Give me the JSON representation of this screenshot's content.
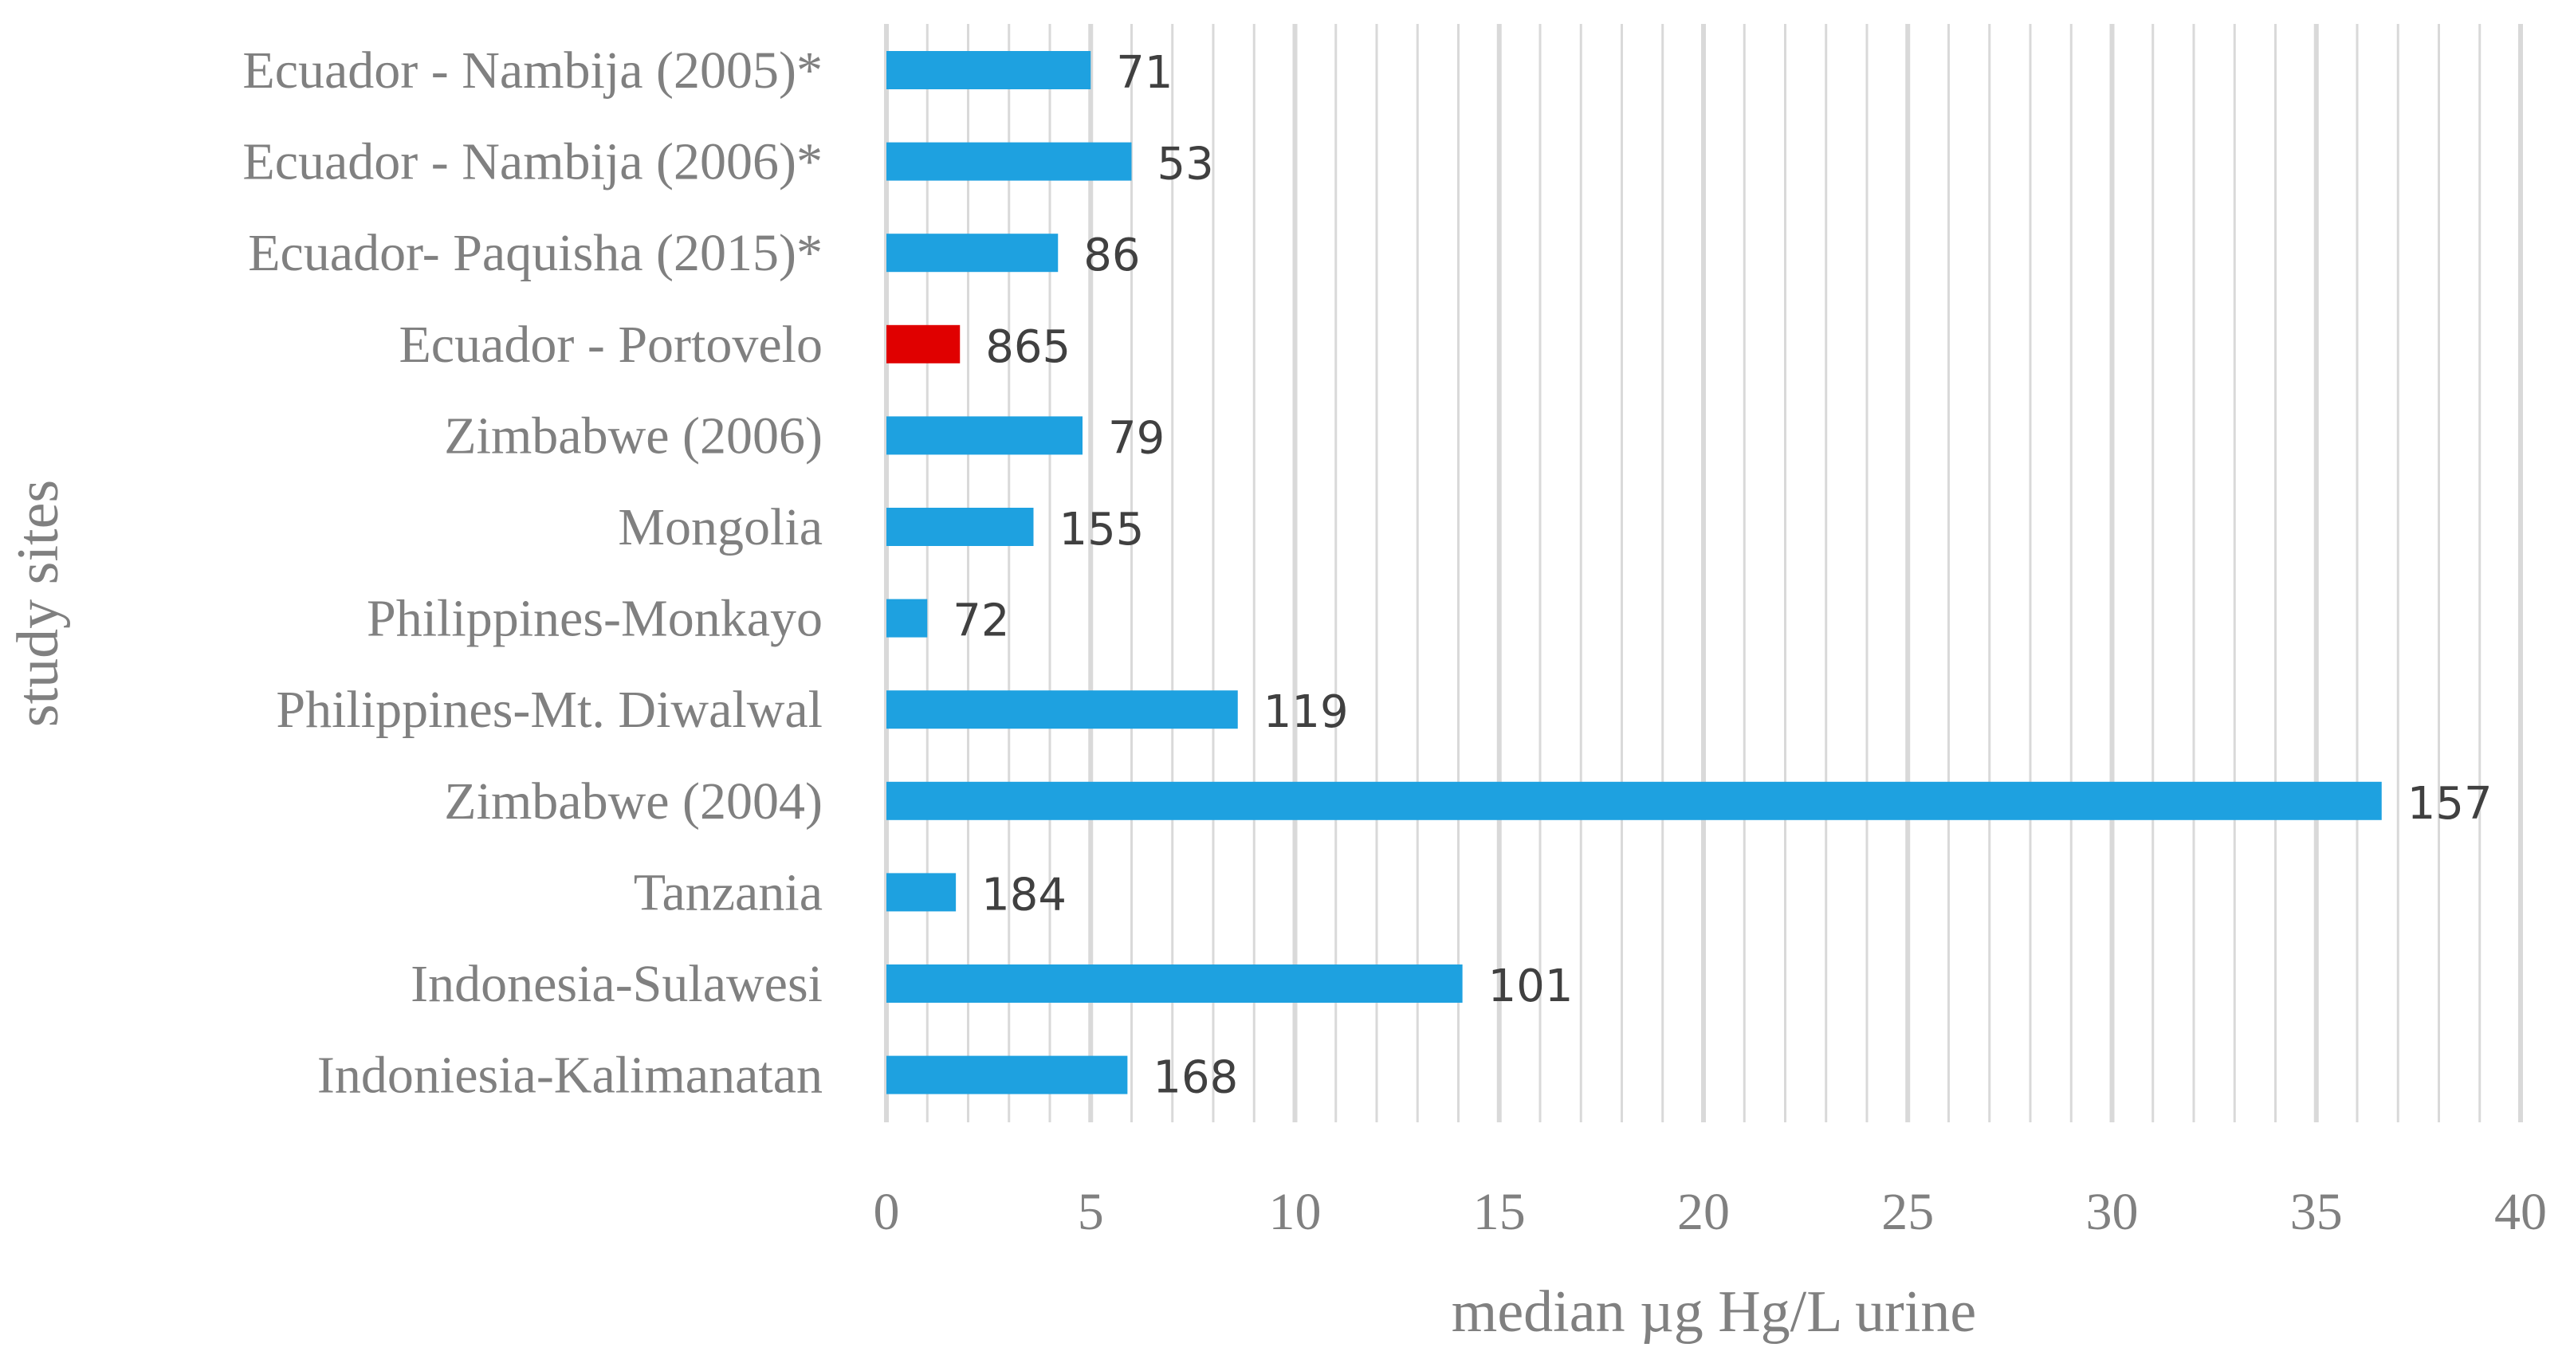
{
  "chart_data": {
    "type": "bar",
    "orientation": "horizontal",
    "categories": [
      "Ecuador - Nambija (2005)*",
      "Ecuador - Nambija (2006)*",
      "Ecuador- Paquisha (2015)*",
      "Ecuador - Portovelo",
      "Zimbabwe (2006)",
      "Mongolia",
      "Philippines-Monkayo",
      "Philippines-Mt. Diwalwal",
      "Zimbabwe (2004)",
      "Tanzania",
      "Indonesia-Sulawesi",
      "Indoniesia-Kalimanatan"
    ],
    "values": [
      5.0,
      6.0,
      4.2,
      1.8,
      4.8,
      3.6,
      1.0,
      8.6,
      36.6,
      1.7,
      14.1,
      5.9
    ],
    "data_labels": [
      "71",
      "53",
      "86",
      "865",
      "79",
      "155",
      "72",
      "119",
      "157",
      "184",
      "101",
      "168"
    ],
    "colors": [
      "#1ea1e0",
      "#1ea1e0",
      "#1ea1e0",
      "#e00000",
      "#1ea1e0",
      "#1ea1e0",
      "#1ea1e0",
      "#1ea1e0",
      "#1ea1e0",
      "#1ea1e0",
      "#1ea1e0",
      "#1ea1e0"
    ],
    "xlabel": "median µg Hg/L urine",
    "ylabel": "study sites",
    "xlim": [
      0,
      40
    ],
    "xticks": [
      "0",
      "5",
      "10",
      "15",
      "20",
      "25",
      "30",
      "35",
      "40"
    ],
    "grid": {
      "vertical_major": true,
      "vertical_minor": true,
      "minor_step": 1
    },
    "legend": "none"
  }
}
